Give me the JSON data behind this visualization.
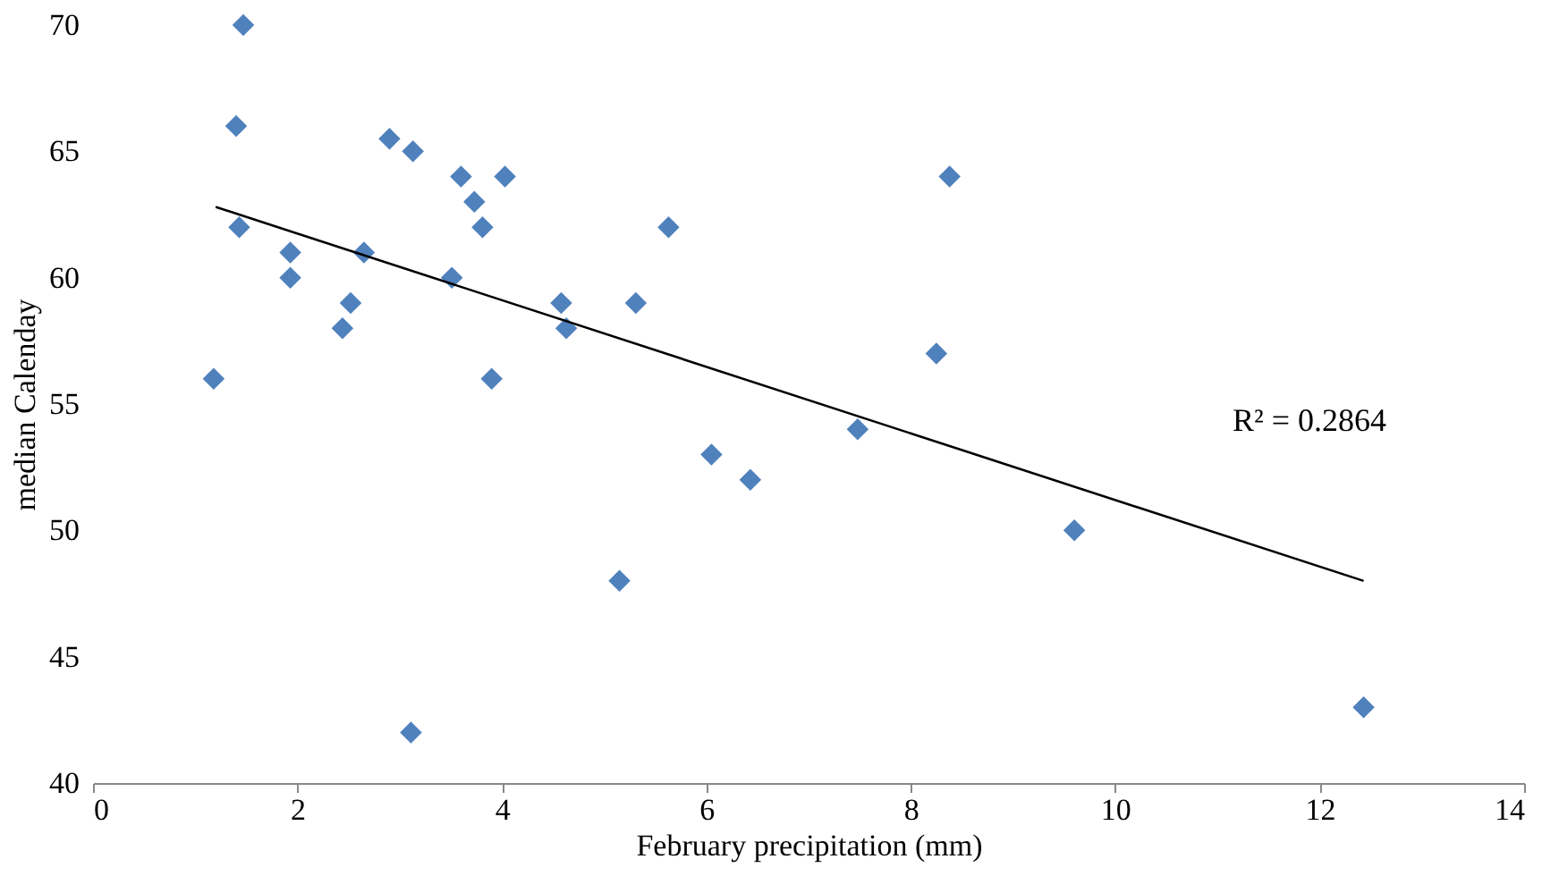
{
  "chart_data": {
    "type": "scatter",
    "xlabel": "February precipitation (mm)",
    "ylabel": "median Calenday",
    "xlim": [
      0,
      14
    ],
    "xticks": [
      0,
      2,
      4,
      6,
      8,
      10,
      12,
      14
    ],
    "ylim": [
      40,
      70
    ],
    "yticks": [
      40,
      45,
      50,
      55,
      60,
      65,
      70
    ],
    "grid": false,
    "series": [
      {
        "marker": "diamond",
        "color": "#4f81bd",
        "x": [
          1.47,
          1.4,
          1.43,
          1.18,
          1.93,
          1.93,
          2.44,
          2.52,
          2.65,
          2.9,
          3.13,
          3.11,
          3.51,
          3.6,
          3.73,
          3.81,
          4.03,
          3.9,
          4.58,
          4.63,
          5.15,
          5.31,
          5.63,
          6.05,
          6.43,
          7.48,
          8.25,
          8.38,
          9.6,
          12.43
        ],
        "values": [
          70,
          66,
          62,
          56,
          61,
          60,
          58,
          59,
          61,
          65.5,
          65,
          42,
          60,
          64,
          63,
          62,
          64,
          56,
          59,
          58,
          48,
          59,
          62,
          53,
          52,
          54,
          57,
          64,
          50,
          43
        ]
      },
      {
        "type": "line",
        "marker": "none",
        "line_style": "solid",
        "color": "#000000",
        "x": [
          1.2,
          12.43
        ],
        "values": [
          62.8,
          48.0
        ]
      }
    ],
    "annotations": [
      "R² = 0.2864"
    ]
  }
}
